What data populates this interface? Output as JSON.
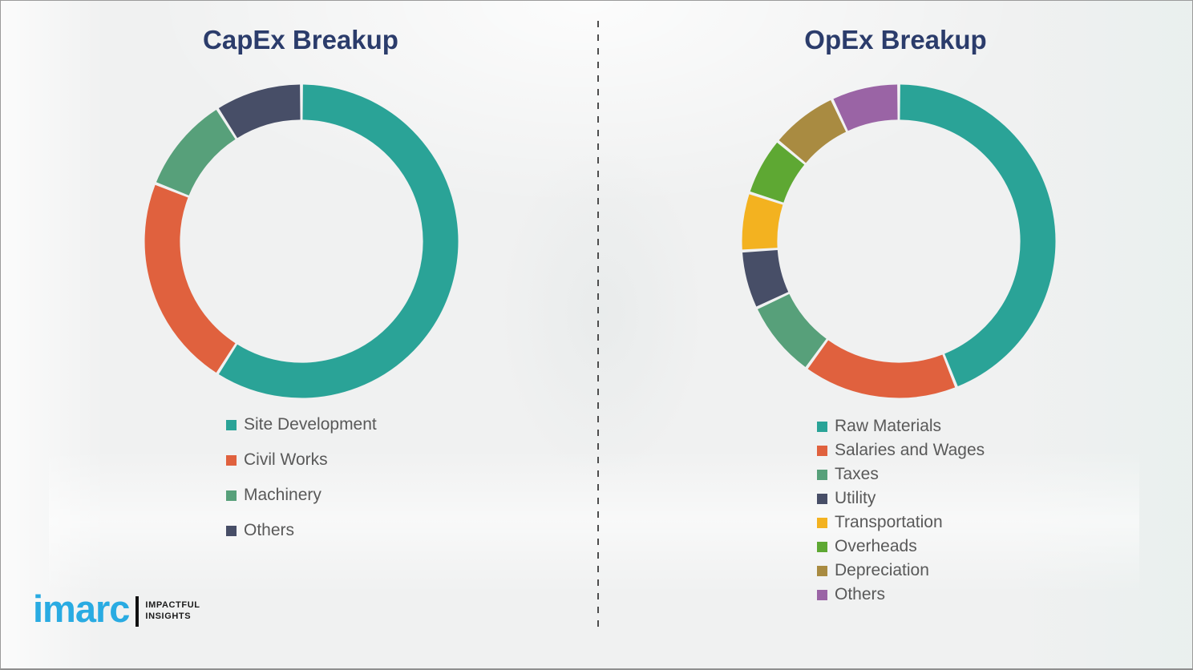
{
  "chart_data": [
    {
      "type": "pie",
      "subtype": "donut",
      "title": "CapEx Breakup",
      "labels": [
        "Site Development",
        "Civil Works",
        "Machinery",
        "Others"
      ],
      "values": [
        59,
        22,
        10,
        9
      ],
      "unit": "percent (estimated from arc angles, no data labels shown)",
      "colors": [
        "#2aa397",
        "#e0613e",
        "#57a07a",
        "#474e67"
      ],
      "start_angle_deg": 0,
      "direction": "clockwise",
      "legend_position": "below-left"
    },
    {
      "type": "pie",
      "subtype": "donut",
      "title": "OpEx Breakup",
      "labels": [
        "Raw Materials",
        "Salaries and Wages",
        "Taxes",
        "Utility",
        "Transportation",
        "Overheads",
        "Depreciation",
        "Others"
      ],
      "values": [
        44,
        16,
        8,
        6,
        6,
        6,
        7,
        7
      ],
      "unit": "percent (estimated from arc angles, no data labels shown)",
      "colors": [
        "#2aa397",
        "#e0613e",
        "#57a07a",
        "#474e67",
        "#f3b220",
        "#5ea833",
        "#a98b41",
        "#9a64a5"
      ],
      "start_angle_deg": 0,
      "direction": "clockwise",
      "legend_position": "below-left"
    }
  ],
  "titles": {
    "capex": "CapEx Breakup",
    "opex": "OpEx Breakup"
  },
  "logo": {
    "brand": "imarc",
    "tagline_line1": "IMPACTFUL",
    "tagline_line2": "INSIGHTS",
    "brand_color": "#29abe2"
  },
  "style_colors": {
    "title_navy": "#2b3c6b",
    "legend_text": "#595959",
    "background": "#f0f1f1",
    "divider": "#4d4d4d"
  }
}
